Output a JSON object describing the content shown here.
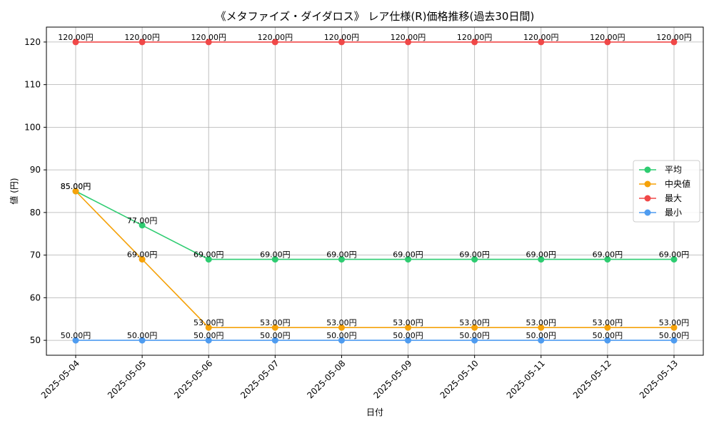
{
  "chart_data": {
    "type": "line",
    "title": "《メタファイズ・ダイダロス》 レア仕様(R)価格推移(過去30日間)",
    "xlabel": "日付",
    "ylabel": "値 (円)",
    "ylim": [
      46.5,
      123.5
    ],
    "yticks": [
      50,
      60,
      70,
      80,
      90,
      100,
      110,
      120
    ],
    "grid": true,
    "legend_position": "center-right",
    "categories": [
      "2025-05-04",
      "2025-05-05",
      "2025-05-06",
      "2025-05-07",
      "2025-05-08",
      "2025-05-09",
      "2025-05-10",
      "2025-05-11",
      "2025-05-12",
      "2025-05-13"
    ],
    "series": [
      {
        "name": "平均",
        "color": "#2ecc71",
        "values": [
          85,
          77,
          69,
          69,
          69,
          69,
          69,
          69,
          69,
          69
        ],
        "labels": [
          "85.00円",
          "77.00円",
          "69.00円",
          "69.00円",
          "69.00円",
          "69.00円",
          "69.00円",
          "69.00円",
          "69.00円",
          "69.00円"
        ]
      },
      {
        "name": "中央値",
        "color": "#f5a20a",
        "values": [
          85,
          69,
          53,
          53,
          53,
          53,
          53,
          53,
          53,
          53
        ],
        "labels": [
          "85.00円",
          "69.00円",
          "53.00円",
          "53.00円",
          "53.00円",
          "53.00円",
          "53.00円",
          "53.00円",
          "53.00円",
          "53.00円"
        ]
      },
      {
        "name": "最大",
        "color": "#f04848",
        "values": [
          120,
          120,
          120,
          120,
          120,
          120,
          120,
          120,
          120,
          120
        ],
        "labels": [
          "120.00円",
          "120.00円",
          "120.00円",
          "120.00円",
          "120.00円",
          "120.00円",
          "120.00円",
          "120.00円",
          "120.00円",
          "120.00円"
        ]
      },
      {
        "name": "最小",
        "color": "#4f9cf0",
        "values": [
          50,
          50,
          50,
          50,
          50,
          50,
          50,
          50,
          50,
          50
        ],
        "labels": [
          "50.00円",
          "50.00円",
          "50.00円",
          "50.00円",
          "50.00円",
          "50.00円",
          "50.00円",
          "50.00円",
          "50.00円",
          "50.00円"
        ]
      }
    ]
  }
}
